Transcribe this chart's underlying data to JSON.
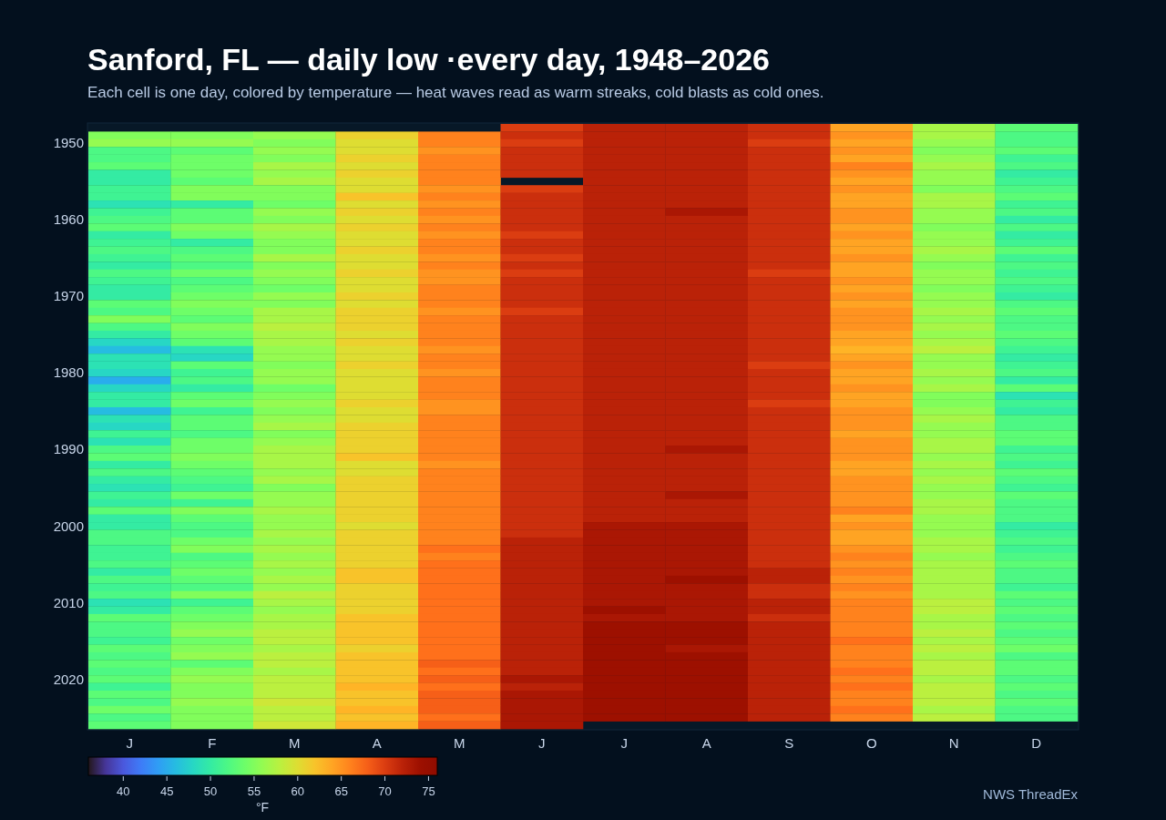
{
  "chart_data": {
    "type": "heatmap",
    "title": "Sanford, FL — daily low ·every day, 1948–2026",
    "subtitle": "Each cell is one day, colored by temperature — heat waves read as warm streaks, cold blasts as cold ones.",
    "clabel": "°F",
    "annotations": [
      "NWS ThreadEx"
    ],
    "categories": [
      "J",
      "F",
      "M",
      "A",
      "M",
      "J",
      "J",
      "A",
      "S",
      "O",
      "N",
      "D"
    ],
    "y_categories": [
      null,
      null,
      "1950",
      null,
      null,
      null,
      null,
      null,
      null,
      null,
      null,
      null,
      "1960",
      null,
      null,
      null,
      null,
      null,
      null,
      null,
      null,
      null,
      "1970",
      null,
      null,
      null,
      null,
      null,
      null,
      null,
      null,
      null,
      "1980",
      null,
      null,
      null,
      null,
      null,
      null,
      null,
      null,
      null,
      "1990",
      null,
      null,
      null,
      null,
      null,
      null,
      null,
      null,
      null,
      "2000",
      null,
      null,
      null,
      null,
      null,
      null,
      null,
      null,
      null,
      "2010",
      null,
      null,
      null,
      null,
      null,
      null,
      null,
      null,
      null,
      "2020",
      null,
      null,
      null,
      null,
      null,
      null
    ],
    "clim": [
      36,
      76
    ],
    "cticks": [
      40,
      45,
      50,
      55,
      60,
      65,
      70,
      75
    ],
    "cells": [
      [
        null,
        null,
        null,
        null,
        null,
        70,
        72,
        72,
        71,
        64,
        57,
        53
      ],
      [
        55,
        55,
        56,
        61,
        66,
        71,
        72,
        72,
        71,
        65,
        57,
        52
      ],
      [
        56,
        56,
        55,
        60,
        66,
        70,
        72,
        72,
        70,
        64,
        56,
        52
      ],
      [
        52,
        53,
        56,
        60,
        65,
        71,
        72,
        72,
        71,
        65,
        55,
        53
      ],
      [
        52,
        54,
        55,
        61,
        66,
        71,
        72,
        72,
        71,
        64,
        56,
        51
      ],
      [
        53,
        54,
        57,
        60,
        66,
        71,
        72,
        72,
        71,
        66,
        57,
        52
      ],
      [
        50,
        54,
        56,
        61,
        66,
        71,
        72,
        72,
        71,
        65,
        56,
        50
      ],
      [
        50,
        53,
        57,
        60,
        66,
        null,
        72,
        72,
        71,
        64,
        56,
        51
      ],
      [
        51,
        55,
        55,
        60,
        65,
        70,
        72,
        72,
        71,
        65,
        55,
        52
      ],
      [
        51,
        55,
        55,
        62,
        66,
        71,
        72,
        72,
        71,
        64,
        57,
        53
      ],
      [
        49,
        50,
        54,
        60,
        65,
        71,
        72,
        72,
        71,
        64,
        57,
        51
      ],
      [
        51,
        53,
        56,
        61,
        66,
        71,
        72,
        73,
        71,
        65,
        56,
        52
      ],
      [
        52,
        53,
        55,
        60,
        65,
        71,
        72,
        72,
        71,
        65,
        56,
        50
      ],
      [
        53,
        55,
        57,
        61,
        66,
        71,
        72,
        72,
        71,
        64,
        55,
        52
      ],
      [
        50,
        54,
        56,
        60,
        65,
        70,
        72,
        72,
        71,
        65,
        56,
        50
      ],
      [
        51,
        50,
        55,
        60,
        66,
        71,
        72,
        72,
        71,
        64,
        56,
        51
      ],
      [
        52,
        52,
        55,
        61,
        66,
        71,
        72,
        72,
        71,
        64,
        57,
        53
      ],
      [
        51,
        53,
        57,
        60,
        65,
        70,
        72,
        72,
        71,
        65,
        56,
        51
      ],
      [
        50,
        52,
        55,
        60,
        66,
        71,
        72,
        72,
        71,
        64,
        55,
        52
      ],
      [
        52,
        54,
        56,
        61,
        65,
        70,
        72,
        72,
        70,
        64,
        56,
        51
      ],
      [
        51,
        52,
        55,
        60,
        65,
        71,
        72,
        72,
        71,
        65,
        56,
        52
      ],
      [
        50,
        53,
        54,
        60,
        66,
        71,
        72,
        72,
        71,
        64,
        55,
        51
      ],
      [
        50,
        54,
        56,
        61,
        66,
        71,
        72,
        72,
        71,
        65,
        56,
        50
      ],
      [
        53,
        55,
        55,
        60,
        66,
        71,
        72,
        72,
        71,
        64,
        56,
        52
      ],
      [
        52,
        54,
        57,
        61,
        65,
        70,
        72,
        72,
        71,
        65,
        57,
        53
      ],
      [
        55,
        53,
        57,
        61,
        66,
        71,
        72,
        72,
        71,
        65,
        56,
        52
      ],
      [
        52,
        55,
        58,
        61,
        66,
        71,
        72,
        72,
        71,
        65,
        57,
        52
      ],
      [
        50,
        54,
        57,
        60,
        66,
        71,
        72,
        72,
        71,
        64,
        56,
        53
      ],
      [
        48,
        53,
        57,
        61,
        66,
        71,
        72,
        72,
        71,
        64,
        57,
        52
      ],
      [
        46,
        49,
        56,
        60,
        65,
        71,
        72,
        72,
        71,
        63,
        58,
        51
      ],
      [
        49,
        48,
        56,
        60,
        66,
        71,
        72,
        72,
        71,
        64,
        56,
        50
      ],
      [
        49,
        53,
        55,
        61,
        66,
        71,
        72,
        72,
        70,
        65,
        56,
        51
      ],
      [
        48,
        51,
        56,
        60,
        65,
        71,
        72,
        72,
        71,
        64,
        57,
        52
      ],
      [
        45,
        52,
        56,
        60,
        66,
        71,
        72,
        72,
        71,
        64,
        56,
        50
      ],
      [
        48,
        50,
        54,
        60,
        66,
        71,
        72,
        72,
        71,
        65,
        57,
        53
      ],
      [
        50,
        53,
        55,
        60,
        66,
        71,
        72,
        72,
        71,
        64,
        55,
        49
      ],
      [
        50,
        54,
        56,
        61,
        65,
        71,
        72,
        72,
        70,
        64,
        55,
        51
      ],
      [
        46,
        51,
        55,
        60,
        65,
        71,
        72,
        72,
        71,
        65,
        56,
        50
      ],
      [
        49,
        53,
        56,
        60,
        66,
        71,
        72,
        72,
        71,
        65,
        57,
        52
      ],
      [
        48,
        53,
        57,
        61,
        66,
        71,
        72,
        72,
        71,
        65,
        56,
        52
      ],
      [
        51,
        52,
        55,
        61,
        66,
        71,
        72,
        72,
        71,
        64,
        56,
        53
      ],
      [
        49,
        54,
        56,
        61,
        66,
        71,
        72,
        72,
        71,
        65,
        57,
        53
      ],
      [
        52,
        54,
        57,
        61,
        66,
        71,
        72,
        73,
        71,
        65,
        57,
        51
      ],
      [
        53,
        55,
        57,
        62,
        66,
        71,
        72,
        72,
        71,
        65,
        56,
        52
      ],
      [
        50,
        54,
        57,
        60,
        65,
        71,
        72,
        72,
        71,
        64,
        57,
        51
      ],
      [
        52,
        53,
        56,
        60,
        66,
        71,
        72,
        72,
        71,
        64,
        56,
        53
      ],
      [
        50,
        52,
        57,
        61,
        66,
        71,
        72,
        72,
        71,
        65,
        57,
        52
      ],
      [
        49,
        51,
        55,
        61,
        66,
        71,
        72,
        72,
        71,
        65,
        56,
        51
      ],
      [
        51,
        54,
        56,
        61,
        66,
        71,
        72,
        73,
        71,
        65,
        56,
        53
      ],
      [
        50,
        51,
        56,
        61,
        66,
        71,
        72,
        72,
        71,
        65,
        57,
        52
      ],
      [
        53,
        55,
        57,
        61,
        66,
        71,
        72,
        72,
        71,
        66,
        57,
        52
      ],
      [
        50,
        53,
        56,
        61,
        66,
        71,
        72,
        72,
        71,
        64,
        56,
        52
      ],
      [
        50,
        52,
        56,
        60,
        66,
        71,
        73,
        73,
        71,
        65,
        56,
        50
      ],
      [
        52,
        52,
        57,
        61,
        66,
        71,
        73,
        73,
        71,
        64,
        56,
        51
      ],
      [
        52,
        54,
        56,
        61,
        66,
        72,
        73,
        73,
        71,
        64,
        57,
        52
      ],
      [
        51,
        55,
        57,
        61,
        67,
        72,
        73,
        73,
        71,
        65,
        57,
        51
      ],
      [
        51,
        52,
        56,
        61,
        66,
        72,
        73,
        73,
        71,
        66,
        56,
        52
      ],
      [
        52,
        53,
        57,
        61,
        67,
        72,
        73,
        73,
        71,
        65,
        57,
        53
      ],
      [
        50,
        54,
        56,
        62,
        67,
        72,
        73,
        73,
        72,
        66,
        57,
        52
      ],
      [
        52,
        53,
        57,
        62,
        67,
        72,
        73,
        74,
        72,
        65,
        57,
        52
      ],
      [
        51,
        52,
        56,
        61,
        67,
        72,
        73,
        73,
        71,
        66,
        57,
        51
      ],
      [
        52,
        55,
        58,
        61,
        67,
        72,
        73,
        73,
        71,
        65,
        57,
        53
      ],
      [
        49,
        51,
        57,
        61,
        67,
        72,
        73,
        73,
        72,
        66,
        58,
        52
      ],
      [
        50,
        53,
        56,
        61,
        67,
        72,
        74,
        73,
        72,
        66,
        58,
        53
      ],
      [
        53,
        54,
        57,
        62,
        67,
        72,
        73,
        73,
        71,
        66,
        57,
        52
      ],
      [
        52,
        55,
        57,
        62,
        67,
        72,
        74,
        74,
        72,
        66,
        57,
        53
      ],
      [
        52,
        56,
        58,
        62,
        67,
        72,
        74,
        74,
        72,
        66,
        58,
        52
      ],
      [
        51,
        54,
        58,
        62,
        67,
        72,
        74,
        74,
        72,
        67,
        57,
        53
      ],
      [
        53,
        55,
        57,
        61,
        67,
        72,
        74,
        73,
        72,
        66,
        58,
        54
      ],
      [
        52,
        56,
        58,
        62,
        67,
        72,
        74,
        74,
        72,
        66,
        57,
        52
      ],
      [
        53,
        53,
        58,
        62,
        68,
        72,
        74,
        74,
        72,
        66,
        58,
        53
      ],
      [
        52,
        55,
        57,
        62,
        67,
        72,
        74,
        74,
        72,
        67,
        58,
        53
      ],
      [
        53,
        56,
        58,
        62,
        68,
        73,
        74,
        74,
        72,
        66,
        57,
        52
      ],
      [
        51,
        55,
        58,
        63,
        67,
        72,
        74,
        74,
        72,
        67,
        58,
        53
      ],
      [
        53,
        55,
        58,
        62,
        68,
        73,
        74,
        74,
        72,
        66,
        58,
        52
      ],
      [
        52,
        56,
        59,
        62,
        68,
        73,
        74,
        74,
        72,
        66,
        58,
        53
      ],
      [
        54,
        55,
        58,
        63,
        68,
        73,
        74,
        74,
        72,
        67,
        57,
        52
      ],
      [
        52,
        55,
        58,
        62,
        67,
        73,
        74,
        74,
        72,
        66,
        58,
        52
      ],
      [
        53,
        55,
        59,
        63,
        68,
        73,
        null,
        null,
        null,
        null,
        null,
        null
      ]
    ]
  }
}
